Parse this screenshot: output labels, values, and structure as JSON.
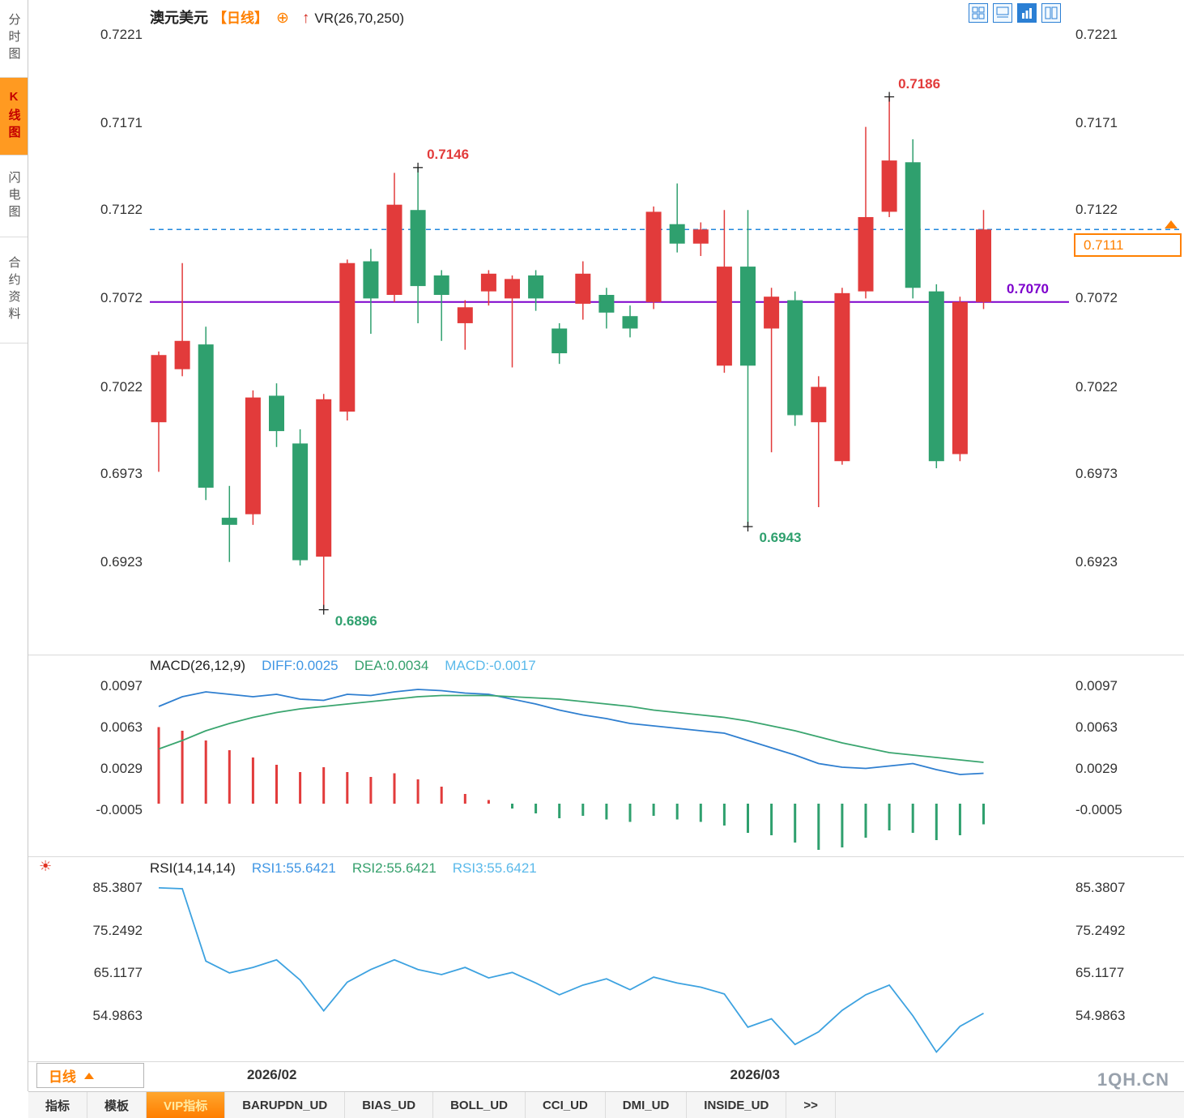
{
  "sidebar": {
    "items": [
      {
        "name": "minute-chart",
        "label": "分时图",
        "selected": false
      },
      {
        "name": "kline-chart",
        "label": "K线图",
        "selected": true
      },
      {
        "name": "flash-chart",
        "label": "闪电图",
        "selected": false
      },
      {
        "name": "contract-info",
        "label": "合约资料",
        "selected": false
      }
    ]
  },
  "header": {
    "symbol": "澳元美元",
    "period": "【日线】",
    "indicator": "VR(26,70,250)"
  },
  "toolbar_icons": [
    {
      "name": "grid-layout-icon",
      "selected": false
    },
    {
      "name": "pane-layout-icon",
      "selected": false
    },
    {
      "name": "bars-style-icon",
      "selected": true
    },
    {
      "name": "split-view-icon",
      "selected": false
    }
  ],
  "macd_header": {
    "name": "MACD(26,12,9)",
    "diff": "DIFF:0.0025",
    "dea": "DEA:0.0034",
    "macd": "MACD:-0.0017"
  },
  "rsi_header": {
    "name": "RSI(14,14,14)",
    "rsi1": "RSI1:55.6421",
    "rsi2": "RSI2:55.6421",
    "rsi3": "RSI3:55.6421"
  },
  "price_labels": {
    "current": "0.7111",
    "prev": "0.7070"
  },
  "bottom": {
    "period_label": "日线",
    "watermark": "1QH.CN"
  },
  "tabs": [
    {
      "name": "tab-indicators",
      "label": "指标",
      "selected": false
    },
    {
      "name": "tab-templates",
      "label": "模板",
      "selected": false
    },
    {
      "name": "tab-vip-indicators",
      "label": "VIP指标",
      "selected": true
    },
    {
      "name": "tab-barupdn-ud",
      "label": "BARUPDN_UD",
      "selected": false
    },
    {
      "name": "tab-bias-ud",
      "label": "BIAS_UD",
      "selected": false
    },
    {
      "name": "tab-boll-ud",
      "label": "BOLL_UD",
      "selected": false
    },
    {
      "name": "tab-cci-ud",
      "label": "CCI_UD",
      "selected": false
    },
    {
      "name": "tab-dmi-ud",
      "label": "DMI_UD",
      "selected": false
    },
    {
      "name": "tab-inside-ud",
      "label": "INSIDE_UD",
      "selected": false
    },
    {
      "name": "tab-more",
      "label": ">>",
      "selected": false
    }
  ],
  "colors": {
    "up": "#e23b3b",
    "down": "#2fa06e",
    "prev_close": "#7d00cc",
    "current_price": "#ff8000",
    "dashed_line": "#2288dd",
    "diff_line": "#2f7fd0",
    "dea_line": "#3aa56f",
    "rsi_line": "#3da2e0",
    "accent_orange": "#ff8000",
    "toolbar_blue": "#2b7fd4"
  },
  "chart_data": [
    {
      "type": "candlestick",
      "title": "澳元美元 日线",
      "overlay": "VR(26,70,250)",
      "y_ticks": [
        "0.7221",
        "0.7171",
        "0.7122",
        "0.7072",
        "0.7022",
        "0.6973",
        "0.6923"
      ],
      "ylim": [
        0.6872,
        0.7227
      ],
      "x_ticks": [
        {
          "label": "2026/02",
          "candle": 4.8
        },
        {
          "label": "2026/03",
          "candle": 25.3
        }
      ],
      "lines": {
        "prev_close": 0.707,
        "current": 0.7111
      },
      "candles": [
        [
          0.7002,
          0.7042,
          0.6974,
          0.704
        ],
        [
          0.7032,
          0.7092,
          0.7028,
          0.7048
        ],
        [
          0.7046,
          0.7056,
          0.6958,
          0.6965
        ],
        [
          0.6948,
          0.6966,
          0.6923,
          0.6944
        ],
        [
          0.695,
          0.702,
          0.6944,
          0.7016
        ],
        [
          0.7017,
          0.7024,
          0.6988,
          0.6997
        ],
        [
          0.699,
          0.6998,
          0.6921,
          0.6924
        ],
        [
          0.6926,
          0.7018,
          0.6896,
          0.7015
        ],
        [
          0.7008,
          0.7094,
          0.7003,
          0.7092
        ],
        [
          0.7093,
          0.71,
          0.7052,
          0.7072
        ],
        [
          0.7074,
          0.7143,
          0.707,
          0.7125
        ],
        [
          0.7122,
          0.7146,
          0.7058,
          0.7079
        ],
        [
          0.7085,
          0.7088,
          0.7048,
          0.7074
        ],
        [
          0.7058,
          0.7071,
          0.7043,
          0.7067
        ],
        [
          0.7076,
          0.7088,
          0.7068,
          0.7086
        ],
        [
          0.7072,
          0.7085,
          0.7033,
          0.7083
        ],
        [
          0.7085,
          0.7088,
          0.7065,
          0.7072
        ],
        [
          0.7055,
          0.7058,
          0.7035,
          0.7041
        ],
        [
          0.7069,
          0.7093,
          0.706,
          0.7086
        ],
        [
          0.7074,
          0.7078,
          0.7055,
          0.7064
        ],
        [
          0.7062,
          0.7068,
          0.705,
          0.7055
        ],
        [
          0.707,
          0.7124,
          0.7066,
          0.7121
        ],
        [
          0.7114,
          0.7137,
          0.7098,
          0.7103
        ],
        [
          0.7103,
          0.7115,
          0.7096,
          0.7111
        ],
        [
          0.7034,
          0.7122,
          0.703,
          0.709
        ],
        [
          0.709,
          0.7122,
          0.6943,
          0.7034
        ],
        [
          0.7055,
          0.7078,
          0.6985,
          0.7073
        ],
        [
          0.7071,
          0.7076,
          0.7,
          0.7006
        ],
        [
          0.7002,
          0.7028,
          0.6954,
          0.7022
        ],
        [
          0.698,
          0.7078,
          0.6978,
          0.7075
        ],
        [
          0.7076,
          0.7169,
          0.7072,
          0.7118
        ],
        [
          0.7121,
          0.7186,
          0.7118,
          0.715
        ],
        [
          0.7149,
          0.7162,
          0.7072,
          0.7078
        ],
        [
          0.7076,
          0.708,
          0.6976,
          0.698
        ],
        [
          0.6984,
          0.7073,
          0.698,
          0.707
        ],
        [
          0.707,
          0.7122,
          0.7066,
          0.7111
        ]
      ],
      "annotations": [
        {
          "label": "0.7186",
          "candle": 31,
          "at": "high",
          "value": 0.7186,
          "color": "#e23b3b"
        },
        {
          "label": "0.7146",
          "candle": 11,
          "at": "high",
          "value": 0.7146,
          "color": "#e23b3b"
        },
        {
          "label": "0.6943",
          "candle": 25,
          "at": "low",
          "value": 0.6943,
          "color": "#2fa06e"
        },
        {
          "label": "0.6896",
          "candle": 7,
          "at": "low",
          "value": 0.6896,
          "color": "#2fa06e"
        }
      ]
    },
    {
      "type": "bar",
      "title": "MACD(26,12,9)",
      "y_ticks": [
        "0.0097",
        "0.0063",
        "0.0029",
        "-0.0005"
      ],
      "ylim": [
        -0.004,
        0.0104
      ],
      "current": {
        "diff": 0.0025,
        "dea": 0.0034,
        "macd": -0.0017
      },
      "diff": [
        0.008,
        0.0088,
        0.0092,
        0.009,
        0.0088,
        0.009,
        0.0086,
        0.0085,
        0.009,
        0.0089,
        0.0092,
        0.0094,
        0.0093,
        0.0091,
        0.009,
        0.0086,
        0.0082,
        0.0077,
        0.0073,
        0.007,
        0.0066,
        0.0064,
        0.0062,
        0.006,
        0.0058,
        0.0052,
        0.0046,
        0.004,
        0.0033,
        0.003,
        0.0029,
        0.0031,
        0.0033,
        0.0028,
        0.0024,
        0.0025
      ],
      "dea": [
        0.0045,
        0.0052,
        0.006,
        0.0066,
        0.0071,
        0.0075,
        0.0078,
        0.008,
        0.0082,
        0.0084,
        0.0086,
        0.0088,
        0.0089,
        0.0089,
        0.0089,
        0.0088,
        0.0087,
        0.0086,
        0.0084,
        0.0082,
        0.008,
        0.0077,
        0.0075,
        0.0073,
        0.0071,
        0.0068,
        0.0064,
        0.006,
        0.0055,
        0.005,
        0.0046,
        0.0042,
        0.004,
        0.0038,
        0.0036,
        0.0034
      ],
      "histogram": [
        0.0063,
        0.006,
        0.0052,
        0.0044,
        0.0038,
        0.0032,
        0.0026,
        0.003,
        0.0026,
        0.0022,
        0.0025,
        0.002,
        0.0014,
        0.0008,
        0.0003,
        -0.0004,
        -0.0008,
        -0.0012,
        -0.001,
        -0.0013,
        -0.0015,
        -0.001,
        -0.0013,
        -0.0015,
        -0.0018,
        -0.0024,
        -0.0026,
        -0.0032,
        -0.0038,
        -0.0036,
        -0.0028,
        -0.0022,
        -0.0024,
        -0.003,
        -0.0026,
        -0.0017
      ]
    },
    {
      "type": "line",
      "title": "RSI(14,14,14)",
      "y_ticks": [
        "85.3807",
        "75.2492",
        "65.1177",
        "54.9863"
      ],
      "ylim": [
        44.2,
        87.5
      ],
      "current": {
        "rsi1": 55.6421,
        "rsi2": 55.6421,
        "rsi3": 55.6421
      },
      "values": [
        85.4,
        85.2,
        68.0,
        65.2,
        66.5,
        68.3,
        63.5,
        56.2,
        63.0,
        66.0,
        68.3,
        66.0,
        64.8,
        66.5,
        64.0,
        65.3,
        62.8,
        60.0,
        62.3,
        63.8,
        61.2,
        64.2,
        62.8,
        61.8,
        60.2,
        52.3,
        54.3,
        48.2,
        51.2,
        56.3,
        60.0,
        62.3,
        55.0,
        46.4,
        52.5,
        55.6
      ]
    }
  ]
}
